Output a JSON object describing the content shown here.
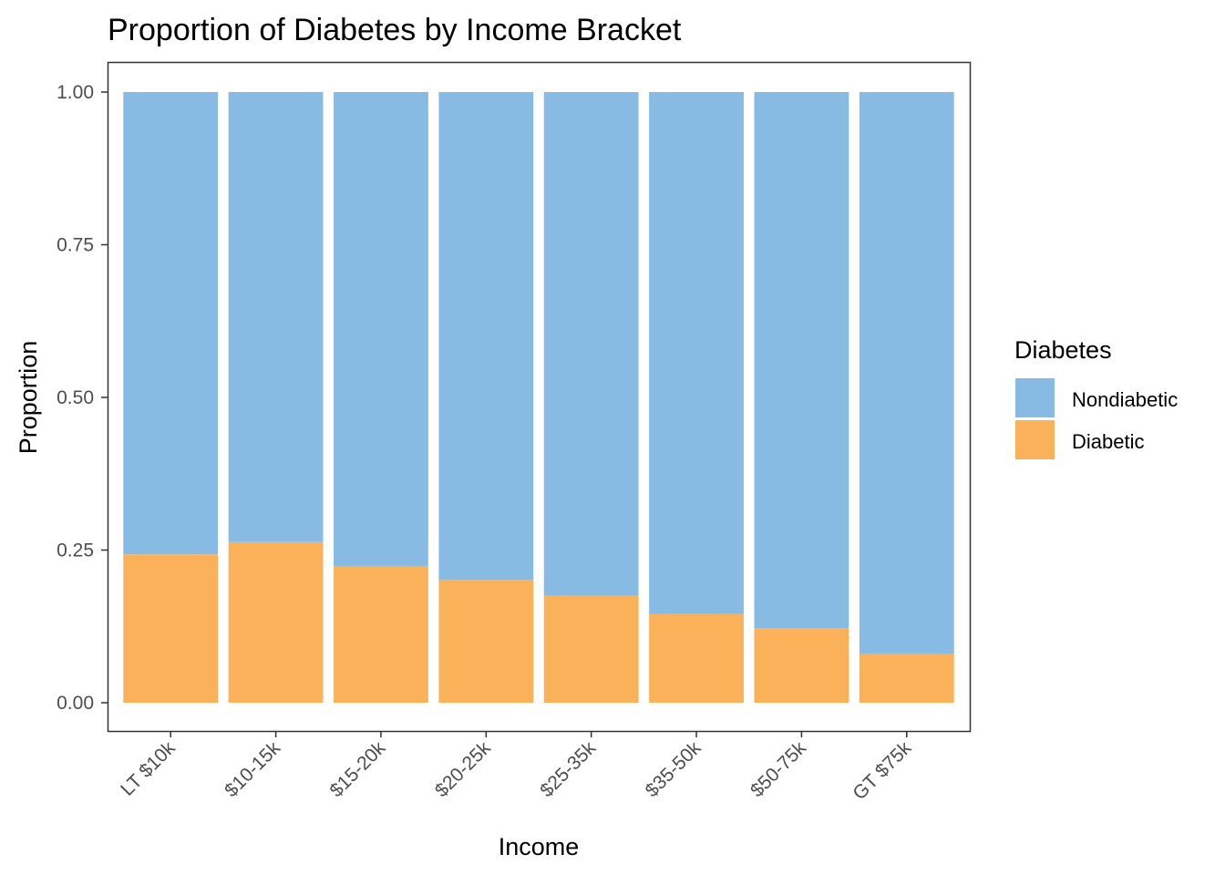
{
  "chart_data": {
    "type": "bar",
    "stacked": true,
    "title": "Proportion of Diabetes by Income Bracket",
    "xlabel": "Income",
    "ylabel": "Proportion",
    "ylim": [
      0,
      1
    ],
    "yticks": [
      "0.00",
      "0.25",
      "0.50",
      "0.75",
      "1.00"
    ],
    "categories": [
      "LT $10k",
      "$10-15k",
      "$15-20k",
      "$20-25k",
      "$25-35k",
      "$35-50k",
      "$50-75k",
      "GT $75k"
    ],
    "series": [
      {
        "name": "Diabetic",
        "color": "#fbb15a",
        "values": [
          0.243,
          0.263,
          0.224,
          0.201,
          0.175,
          0.145,
          0.122,
          0.08
        ]
      },
      {
        "name": "Nondiabetic",
        "color": "#88bbe3",
        "values": [
          0.757,
          0.737,
          0.776,
          0.799,
          0.825,
          0.855,
          0.878,
          0.92
        ]
      }
    ],
    "legend": {
      "title": "Diabetes",
      "position": "right",
      "entries": [
        {
          "label": "Nondiabetic",
          "color": "#88bbe3"
        },
        {
          "label": "Diabetic",
          "color": "#fbb15a"
        }
      ]
    },
    "grid": false
  }
}
